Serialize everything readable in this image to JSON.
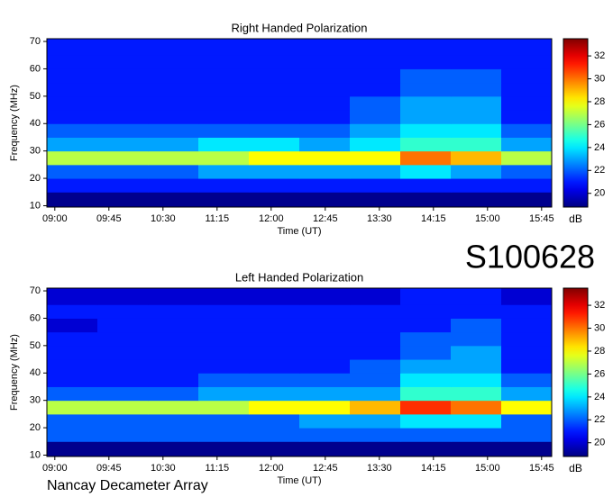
{
  "chart_data": [
    {
      "type": "heatmap",
      "title": "Right Handed Polarization",
      "x_label": "Time (UT)",
      "y_label": "Frequency (MHz)",
      "colorbar_label": "dB",
      "xlim": [
        8.89,
        15.89
      ],
      "ylim": [
        9.5,
        71
      ],
      "zlim": [
        18.8,
        33.5
      ],
      "xticks": [
        {
          "value": 9,
          "label": "09:00"
        },
        {
          "value": 9.75,
          "label": "09:45"
        },
        {
          "value": 10.5,
          "label": "10:30"
        },
        {
          "value": 11.25,
          "label": "11:15"
        },
        {
          "value": 12,
          "label": "12:00"
        },
        {
          "value": 12.75,
          "label": "12:45"
        },
        {
          "value": 13.5,
          "label": "13:30"
        },
        {
          "value": 14.25,
          "label": "14:15"
        },
        {
          "value": 15,
          "label": "15:00"
        },
        {
          "value": 15.75,
          "label": "15:45"
        }
      ],
      "yticks": [
        10,
        20,
        30,
        40,
        50,
        60,
        70
      ],
      "zticks": [
        20,
        22,
        24,
        26,
        28,
        30,
        32
      ],
      "xbins": [
        8.89,
        9.59,
        10.29,
        10.99,
        11.69,
        12.39,
        13.09,
        13.79,
        14.49,
        15.19,
        15.89
      ],
      "ybins": [
        9.5,
        15,
        20,
        25,
        30,
        35,
        40,
        45,
        50,
        55,
        60,
        65,
        71
      ],
      "z": [
        [
          19,
          19,
          19,
          19,
          19,
          19,
          19,
          19,
          19,
          19
        ],
        [
          21,
          21,
          21,
          21,
          21,
          21,
          21,
          21,
          21,
          21
        ],
        [
          22,
          22,
          22,
          23,
          23,
          23,
          23,
          24,
          23,
          22
        ],
        [
          27,
          27,
          27,
          27,
          28,
          28,
          28,
          30,
          29,
          27
        ],
        [
          23,
          23,
          23,
          24,
          24,
          23,
          24,
          25,
          25,
          23
        ],
        [
          22,
          22,
          22,
          22,
          22,
          22,
          23,
          24,
          24,
          22
        ],
        [
          21,
          21,
          21,
          21,
          21,
          21,
          22,
          23,
          23,
          21
        ],
        [
          21,
          21,
          21,
          21,
          21,
          21,
          22,
          23,
          23,
          21
        ],
        [
          21,
          21,
          21,
          21,
          21,
          21,
          21,
          22,
          22,
          21
        ],
        [
          21,
          21,
          21,
          21,
          21,
          21,
          21,
          22,
          22,
          21
        ],
        [
          21,
          21,
          21,
          21,
          21,
          21,
          21,
          21,
          21,
          21
        ],
        [
          21,
          21,
          21,
          21,
          21,
          21,
          21,
          21,
          21,
          21
        ]
      ]
    },
    {
      "type": "heatmap",
      "title": "Left Handed Polarization",
      "x_label": "Time (UT)",
      "y_label": "Frequency (MHz)",
      "colorbar_label": "dB",
      "xlim": [
        8.89,
        15.89
      ],
      "ylim": [
        9.5,
        71
      ],
      "zlim": [
        18.8,
        33.5
      ],
      "xticks": [
        {
          "value": 9,
          "label": "09:00"
        },
        {
          "value": 9.75,
          "label": "09:45"
        },
        {
          "value": 10.5,
          "label": "10:30"
        },
        {
          "value": 11.25,
          "label": "11:15"
        },
        {
          "value": 12,
          "label": "12:00"
        },
        {
          "value": 12.75,
          "label": "12:45"
        },
        {
          "value": 13.5,
          "label": "13:30"
        },
        {
          "value": 14.25,
          "label": "14:15"
        },
        {
          "value": 15,
          "label": "15:00"
        },
        {
          "value": 15.75,
          "label": "15:45"
        }
      ],
      "yticks": [
        10,
        20,
        30,
        40,
        50,
        60,
        70
      ],
      "zticks": [
        20,
        22,
        24,
        26,
        28,
        30,
        32
      ],
      "xbins": [
        8.89,
        9.59,
        10.29,
        10.99,
        11.69,
        12.39,
        13.09,
        13.79,
        14.49,
        15.19,
        15.89
      ],
      "ybins": [
        9.5,
        15,
        20,
        25,
        30,
        35,
        40,
        45,
        50,
        55,
        60,
        65,
        71
      ],
      "z": [
        [
          19,
          19,
          19,
          19,
          19,
          19,
          19,
          19,
          19,
          19
        ],
        [
          22,
          22,
          22,
          22,
          22,
          22,
          22,
          22,
          22,
          22
        ],
        [
          22,
          22,
          22,
          22,
          22,
          23,
          23,
          24,
          24,
          22
        ],
        [
          27,
          27,
          27,
          27,
          28,
          28,
          29,
          31,
          30,
          28
        ],
        [
          22,
          22,
          22,
          23,
          23,
          23,
          23,
          25,
          25,
          23
        ],
        [
          21,
          21,
          21,
          22,
          22,
          22,
          22,
          24,
          24,
          22
        ],
        [
          21,
          21,
          21,
          21,
          21,
          21,
          22,
          23,
          23,
          21
        ],
        [
          21,
          21,
          21,
          21,
          21,
          21,
          21,
          22,
          23,
          21
        ],
        [
          21,
          21,
          21,
          21,
          21,
          21,
          21,
          22,
          22,
          21
        ],
        [
          20,
          21,
          21,
          21,
          21,
          21,
          21,
          21,
          22,
          21
        ],
        [
          21,
          21,
          21,
          21,
          21,
          21,
          21,
          21,
          21,
          21
        ],
        [
          20,
          20,
          20,
          20,
          20,
          20,
          20,
          21,
          21,
          20
        ]
      ]
    }
  ],
  "station": "S100628",
  "footer": "Nancay Decameter Array"
}
